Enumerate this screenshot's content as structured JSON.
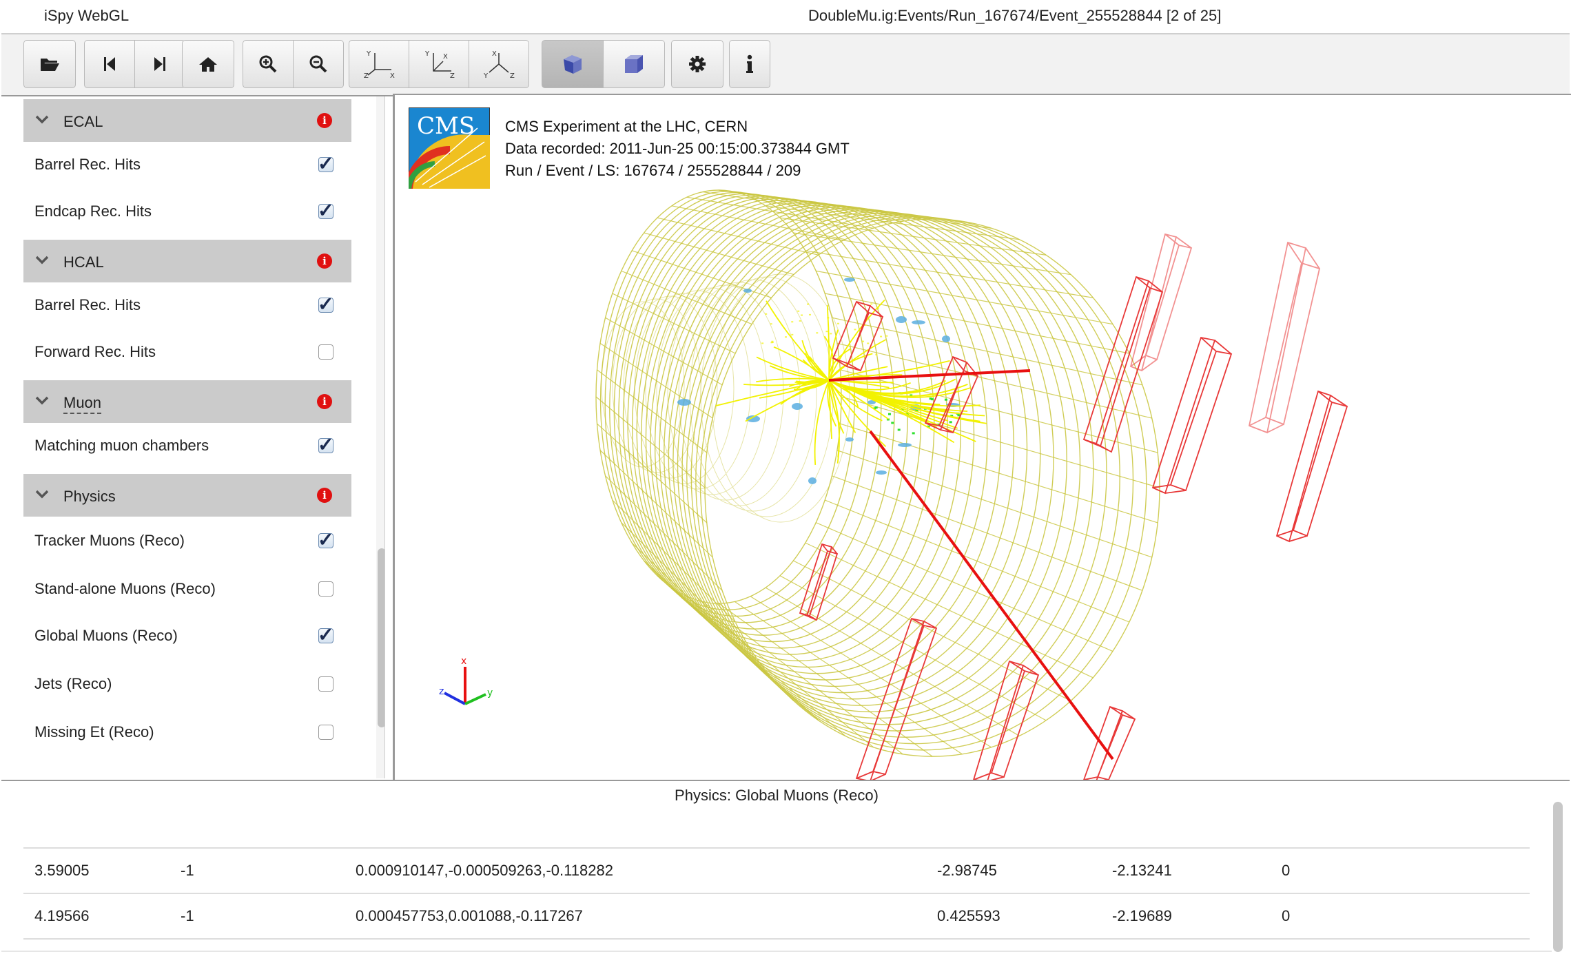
{
  "app_title": "iSpy WebGL",
  "event_title": "DoubleMu.ig:Events/Run_167674/Event_255528844 [2 of 25]",
  "toolbar": {
    "buttons": [
      "open-folder-icon",
      "previous-event-icon",
      "next-event-icon",
      "home-icon",
      "zoom-in-icon",
      "zoom-out-icon",
      "view-xy-icon",
      "view-rz-icon",
      "view-3d-icon",
      "perspective-icon",
      "orthographic-icon",
      "settings-icon",
      "info-icon"
    ]
  },
  "sections": {
    "ecal": {
      "label": "ECAL",
      "items": [
        {
          "label": "Barrel Rec. Hits",
          "checked": true
        },
        {
          "label": "Endcap Rec. Hits",
          "checked": true
        }
      ]
    },
    "hcal": {
      "label": "HCAL",
      "items": [
        {
          "label": "Barrel Rec. Hits",
          "checked": true
        },
        {
          "label": "Forward Rec. Hits",
          "checked": false
        }
      ]
    },
    "muon": {
      "label": "Muon",
      "items": [
        {
          "label": "Matching muon chambers",
          "checked": true
        }
      ]
    },
    "physics": {
      "label": "Physics",
      "items": [
        {
          "label": "Tracker Muons (Reco)",
          "checked": true
        },
        {
          "label": "Stand-alone Muons (Reco)",
          "checked": false
        },
        {
          "label": "Global Muons (Reco)",
          "checked": true
        },
        {
          "label": "Jets (Reco)",
          "checked": false
        },
        {
          "label": "Missing Et (Reco)",
          "checked": false
        }
      ]
    }
  },
  "event_info": {
    "experiment": "CMS Experiment at the LHC, CERN",
    "recorded": "Data recorded: 2011-Jun-25 00:15:00.373844 GMT",
    "run_event": "Run / Event / LS: 167674 / 255528844 / 209"
  },
  "logo_text": "CMS",
  "axis_labels": {
    "x": "x",
    "y": "y",
    "z": "z"
  },
  "colors": {
    "tracker": "#c8c43a",
    "muon_track": "#e81010",
    "muon_chambers": "#e83838",
    "tracks": "#f2f200",
    "hits_blue": "#5aaee0",
    "hits_green": "#30e030"
  },
  "table": {
    "title": "Physics: Global Muons (Reco)",
    "rows": [
      [
        "3.59005",
        "-1",
        "0.000910147,-0.000509263,-0.118282",
        "-2.98745",
        "-2.13241",
        "0"
      ],
      [
        "4.19566",
        "-1",
        "0.000457753,0.001088,-0.117267",
        "0.425593",
        "-2.19689",
        "0"
      ]
    ]
  }
}
